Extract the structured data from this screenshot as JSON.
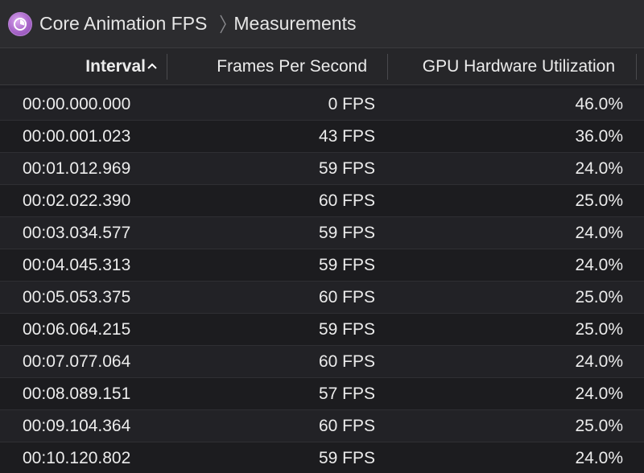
{
  "breadcrumb": {
    "app_icon": "core-animation-gauge-icon",
    "root": "Core Animation FPS",
    "separator_icon": "chevron-right-icon",
    "current": "Measurements"
  },
  "table": {
    "columns": {
      "interval": "Interval",
      "fps": "Frames Per Second",
      "gpu": "GPU Hardware Utilization"
    },
    "sort_icon": "sort-ascending-chevron-icon",
    "rows": [
      {
        "interval": "00:00.000.000",
        "fps": "0 FPS",
        "gpu": "46.0%"
      },
      {
        "interval": "00:00.001.023",
        "fps": "43 FPS",
        "gpu": "36.0%"
      },
      {
        "interval": "00:01.012.969",
        "fps": "59 FPS",
        "gpu": "24.0%"
      },
      {
        "interval": "00:02.022.390",
        "fps": "60 FPS",
        "gpu": "25.0%"
      },
      {
        "interval": "00:03.034.577",
        "fps": "59 FPS",
        "gpu": "24.0%"
      },
      {
        "interval": "00:04.045.313",
        "fps": "59 FPS",
        "gpu": "24.0%"
      },
      {
        "interval": "00:05.053.375",
        "fps": "60 FPS",
        "gpu": "25.0%"
      },
      {
        "interval": "00:06.064.215",
        "fps": "59 FPS",
        "gpu": "25.0%"
      },
      {
        "interval": "00:07.077.064",
        "fps": "60 FPS",
        "gpu": "24.0%"
      },
      {
        "interval": "00:08.089.151",
        "fps": "57 FPS",
        "gpu": "24.0%"
      },
      {
        "interval": "00:09.104.364",
        "fps": "60 FPS",
        "gpu": "25.0%"
      },
      {
        "interval": "00:10.120.802",
        "fps": "59 FPS",
        "gpu": "24.0%"
      }
    ]
  },
  "colors": {
    "background": "#1e1e22",
    "header_bar": "#2c2c2f",
    "text": "#ececec",
    "app_icon_accent": "#a866c9"
  }
}
